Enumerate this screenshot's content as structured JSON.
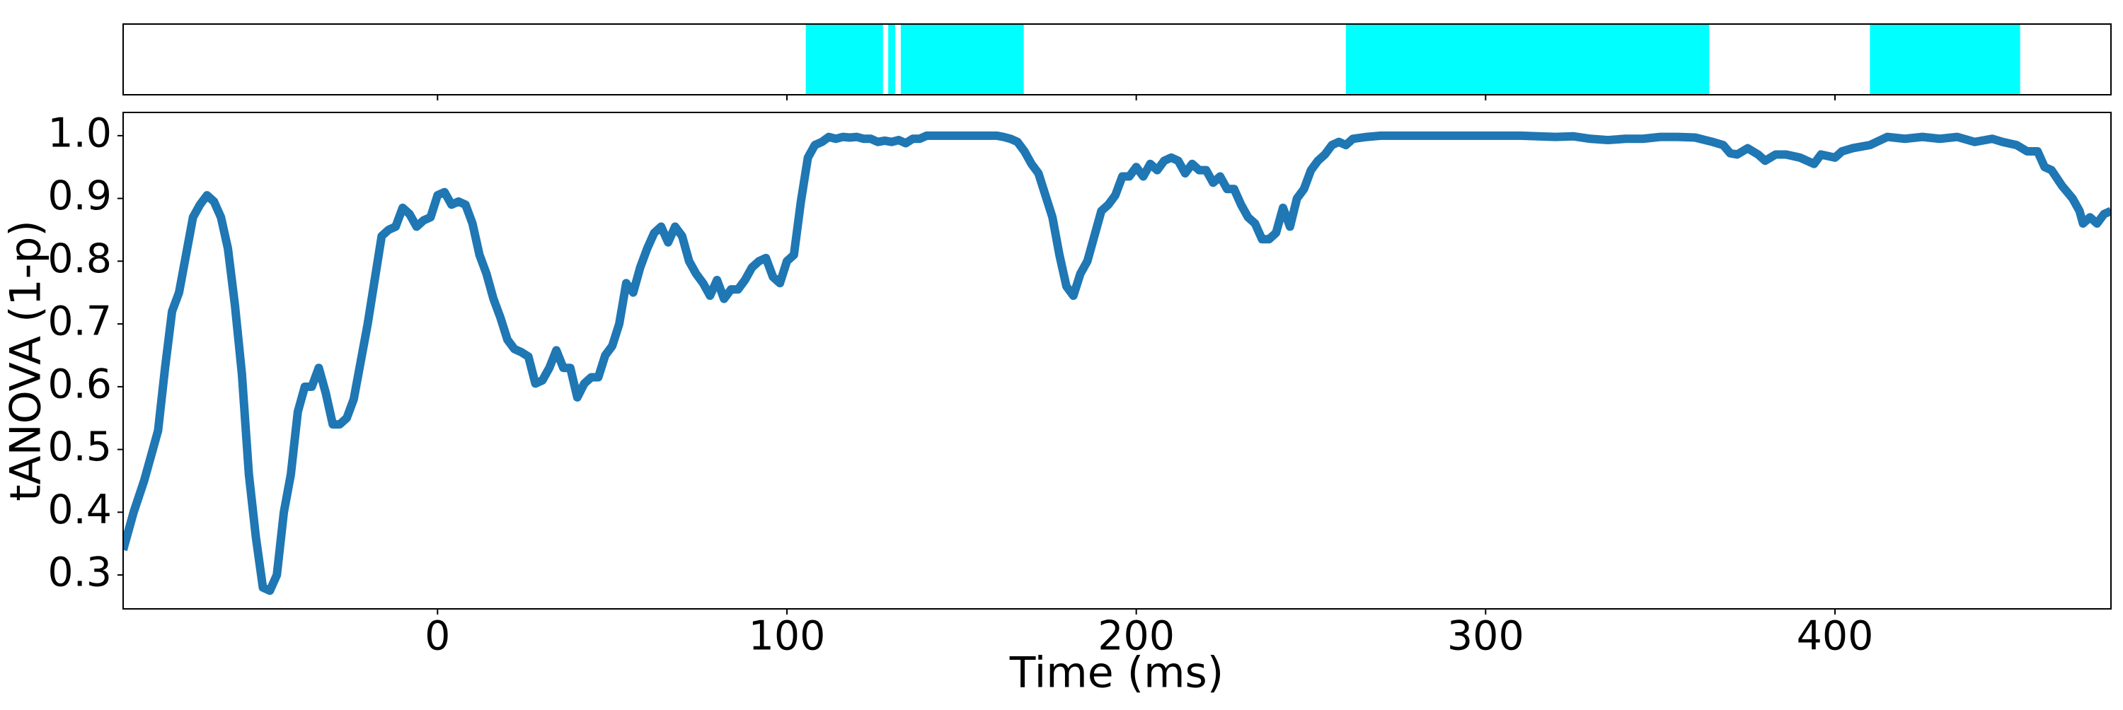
{
  "chart_data": [
    {
      "type": "span",
      "color": "#00ffff",
      "xlim": [
        -90,
        479
      ],
      "xticks": [
        0,
        100,
        200,
        300,
        400
      ],
      "spans": [
        [
          105.4,
          127.5
        ],
        [
          129,
          131
        ],
        [
          132.6,
          167.8
        ],
        [
          260,
          364
        ],
        [
          410,
          453
        ]
      ]
    },
    {
      "type": "line",
      "xlabel": "Time (ms)",
      "ylabel": "tANOVA (1-p)",
      "color": "#1f77b4",
      "xlim": [
        -90,
        479
      ],
      "ylim": [
        0.246,
        1.037
      ],
      "xticks": [
        0,
        100,
        200,
        300,
        400
      ],
      "yticks": [
        0.3,
        0.4,
        0.5,
        0.6,
        0.7,
        0.8,
        0.9,
        {
          "value": 1,
          "label": "1.0"
        }
      ],
      "x": [
        -90,
        -87,
        -84,
        -80,
        -78,
        -76,
        -74,
        -72,
        -70,
        -68,
        -66,
        -64,
        -62,
        -60,
        -58,
        -56,
        -54,
        -52,
        -50,
        -48,
        -46,
        -44,
        -42,
        -40,
        -38,
        -36,
        -34,
        -32,
        -30,
        -28,
        -26,
        -24,
        -22,
        -20,
        -18,
        -16,
        -14,
        -12,
        -10,
        -8,
        -6,
        -4,
        -2,
        0,
        2,
        4,
        6,
        8,
        10,
        12,
        14,
        16,
        18,
        20,
        22,
        24,
        26,
        28,
        30,
        32,
        34,
        36,
        38,
        40,
        42,
        44,
        46,
        48,
        50,
        52,
        54,
        56,
        58,
        60,
        62,
        64,
        66,
        68,
        70,
        72,
        74,
        76,
        78,
        80,
        82,
        84,
        86,
        88,
        90,
        92,
        94,
        96,
        98,
        100,
        102,
        104,
        106,
        108,
        110,
        112,
        114,
        116,
        118,
        120,
        122,
        124,
        126,
        128,
        130,
        132,
        134,
        136,
        138,
        140,
        150,
        160,
        162,
        164,
        166,
        168,
        170,
        172,
        174,
        176,
        178,
        180,
        182,
        184,
        186,
        188,
        190,
        192,
        194,
        196,
        198,
        200,
        202,
        204,
        206,
        208,
        210,
        212,
        214,
        216,
        218,
        220,
        222,
        224,
        226,
        228,
        230,
        232,
        234,
        236,
        238,
        240,
        242,
        244,
        246,
        248,
        250,
        252,
        254,
        256,
        258,
        260,
        262,
        266,
        270,
        280,
        300,
        310,
        320,
        325,
        330,
        335,
        340,
        345,
        350,
        355,
        360,
        365,
        368,
        370,
        372,
        375,
        378,
        380,
        383,
        386,
        390,
        394,
        396,
        400,
        402,
        405,
        410,
        415,
        420,
        425,
        430,
        435,
        440,
        445,
        448,
        452,
        455,
        458,
        460,
        462,
        465,
        468,
        470,
        471,
        473,
        475,
        477,
        479
      ],
      "values": [
        0.34,
        0.4,
        0.45,
        0.53,
        0.63,
        0.72,
        0.75,
        0.81,
        0.87,
        0.89,
        0.905,
        0.895,
        0.87,
        0.82,
        0.73,
        0.62,
        0.46,
        0.36,
        0.28,
        0.275,
        0.3,
        0.4,
        0.46,
        0.56,
        0.6,
        0.6,
        0.63,
        0.59,
        0.54,
        0.54,
        0.55,
        0.58,
        0.64,
        0.7,
        0.77,
        0.84,
        0.85,
        0.855,
        0.885,
        0.875,
        0.855,
        0.865,
        0.87,
        0.905,
        0.91,
        0.89,
        0.895,
        0.89,
        0.86,
        0.81,
        0.78,
        0.74,
        0.71,
        0.675,
        0.66,
        0.655,
        0.648,
        0.605,
        0.61,
        0.63,
        0.658,
        0.63,
        0.63,
        0.583,
        0.605,
        0.615,
        0.615,
        0.65,
        0.665,
        0.7,
        0.765,
        0.75,
        0.79,
        0.82,
        0.845,
        0.855,
        0.83,
        0.855,
        0.84,
        0.8,
        0.78,
        0.765,
        0.745,
        0.77,
        0.74,
        0.755,
        0.755,
        0.77,
        0.79,
        0.8,
        0.805,
        0.775,
        0.765,
        0.8,
        0.81,
        0.895,
        0.965,
        0.985,
        0.99,
        0.998,
        0.995,
        0.998,
        0.997,
        0.998,
        0.995,
        0.995,
        0.99,
        0.992,
        0.99,
        0.993,
        0.988,
        0.995,
        0.995,
        1.0,
        1.0,
        1.0,
        0.998,
        0.995,
        0.99,
        0.975,
        0.955,
        0.94,
        0.905,
        0.87,
        0.81,
        0.76,
        0.745,
        0.78,
        0.8,
        0.84,
        0.88,
        0.89,
        0.905,
        0.935,
        0.935,
        0.95,
        0.935,
        0.955,
        0.945,
        0.96,
        0.965,
        0.96,
        0.94,
        0.955,
        0.945,
        0.945,
        0.925,
        0.935,
        0.915,
        0.915,
        0.89,
        0.87,
        0.86,
        0.835,
        0.835,
        0.845,
        0.885,
        0.855,
        0.9,
        0.915,
        0.945,
        0.96,
        0.97,
        0.985,
        0.99,
        0.985,
        0.995,
        0.998,
        1.0,
        1.0,
        1.0,
        1.0,
        0.998,
        0.999,
        0.995,
        0.993,
        0.995,
        0.995,
        0.998,
        0.998,
        0.997,
        0.99,
        0.985,
        0.972,
        0.97,
        0.98,
        0.97,
        0.96,
        0.97,
        0.97,
        0.965,
        0.955,
        0.97,
        0.965,
        0.975,
        0.98,
        0.985,
        0.998,
        0.995,
        0.998,
        0.995,
        0.998,
        0.99,
        0.995,
        0.99,
        0.985,
        0.975,
        0.975,
        0.95,
        0.945,
        0.92,
        0.9,
        0.88,
        0.86,
        0.87,
        0.86,
        0.875,
        0.88
      ]
    }
  ]
}
